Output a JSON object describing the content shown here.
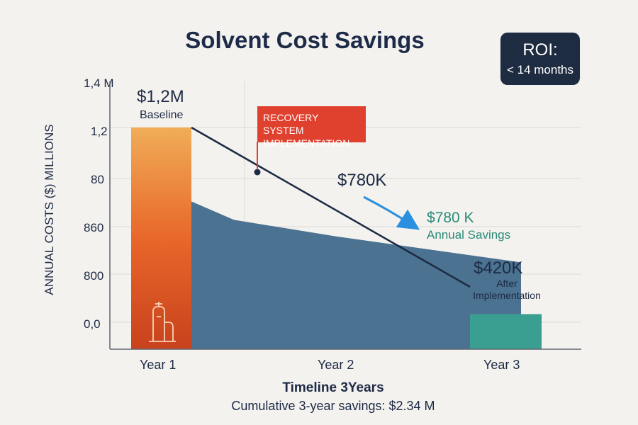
{
  "title": "Solvent Cost Savings",
  "roi": {
    "label": "ROI:",
    "value": "< 14 months"
  },
  "chart_data": {
    "type": "area",
    "title": "Solvent Cost Savings",
    "ylabel": "ANNUAL COSTS ($) MILLIONS",
    "xlabel": "Timeline 3Years",
    "y_tick_labels": [
      "1,4 M",
      "1,2",
      "80",
      "860",
      "800",
      "0,0"
    ],
    "x_tick_labels": [
      "Year 1",
      "Year 2",
      "Year 3"
    ],
    "baseline_bar": {
      "x": "Year 1",
      "value": 1.2,
      "label": "$1,2M",
      "sublabel": "Baseline",
      "color": "#e8672a"
    },
    "after_bar": {
      "x": "Year 3",
      "value": 0.42,
      "label": "$420K",
      "sublabel": "After\nImplementation",
      "color": "#3a9e90"
    },
    "cost_line": {
      "points": [
        [
          1.0,
          1.2
        ],
        [
          3.0,
          0.42
        ]
      ],
      "color": "#1d2a44"
    },
    "savings_area": {
      "points": [
        [
          1.0,
          0.8
        ],
        [
          1.5,
          0.7
        ],
        [
          2.0,
          0.61
        ],
        [
          2.5,
          0.54
        ],
        [
          3.0,
          0.47
        ]
      ],
      "color": "#4b7290"
    },
    "marker": {
      "x": 1.4,
      "value": 0.9,
      "label": "RECOVERY SYSTEM\nIMPLEMENTATION"
    },
    "annotations": [
      {
        "text": "$780K"
      },
      {
        "text": "$780 K",
        "sub": "Annual Savings",
        "color": "#2a8a78"
      }
    ],
    "footnote": "Cumulative 3-year savings: $2.34 M"
  }
}
